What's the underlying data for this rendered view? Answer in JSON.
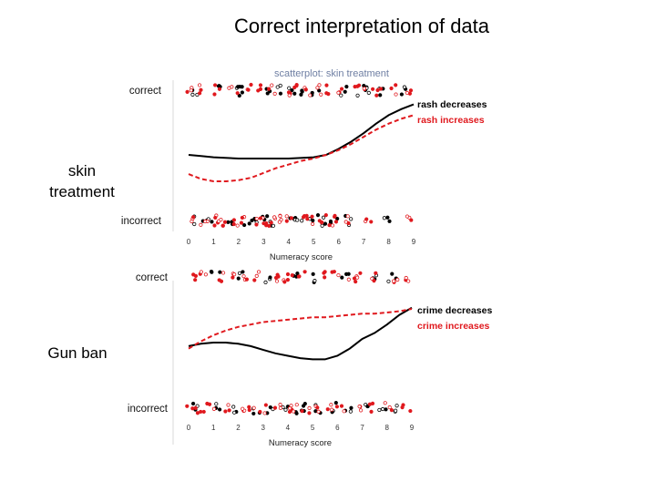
{
  "page": {
    "title": "Correct interpretation of data"
  },
  "panels": [
    {
      "row_label_lines": [
        "skin",
        "treatment"
      ]
    },
    {
      "row_label_lines": [
        "Gun ban"
      ]
    }
  ],
  "chart_data": [
    {
      "type": "scatter",
      "title": "scatterplot: skin treatment",
      "xlabel": "Numeracy score",
      "ylabel": "",
      "x_ticks": [
        0,
        1,
        2,
        3,
        4,
        5,
        6,
        7,
        8,
        9
      ],
      "xlim": [
        0,
        9
      ],
      "y_categories": [
        "correct",
        "incorrect"
      ],
      "series": [
        {
          "name": "rash decreases",
          "color": "#000000",
          "curve": {
            "x": [
              0,
              0.5,
              1,
              2,
              3,
              4,
              5,
              5.5,
              6,
              6.5,
              7,
              7.5,
              8,
              8.5,
              9
            ],
            "y": [
              0.5,
              0.49,
              0.48,
              0.47,
              0.47,
              0.47,
              0.48,
              0.5,
              0.55,
              0.61,
              0.68,
              0.76,
              0.83,
              0.88,
              0.92
            ]
          },
          "points_correct_x": [
            0.2,
            1.3,
            2.0,
            2.2,
            3.2,
            3.6,
            4.1,
            4.6,
            5.1,
            6.2,
            6.9,
            7.3,
            7.8,
            8.6
          ],
          "points_incorrect_x": [
            0.4,
            0.8,
            1.6,
            2.4,
            2.6,
            3.1,
            3.4,
            4.2,
            4.4,
            5.0,
            5.4,
            5.8,
            6.4,
            7.9
          ]
        },
        {
          "name": "rash increases",
          "color": "#e0191e",
          "curve": {
            "x": [
              0,
              0.5,
              1,
              1.5,
              2,
              2.5,
              3,
              3.5,
              4,
              4.5,
              5,
              5.5,
              6,
              6.5,
              7,
              7.5,
              8,
              8.5,
              9
            ],
            "y": [
              0.34,
              0.3,
              0.28,
              0.28,
              0.29,
              0.31,
              0.35,
              0.39,
              0.42,
              0.45,
              0.47,
              0.5,
              0.54,
              0.59,
              0.65,
              0.71,
              0.76,
              0.8,
              0.83
            ]
          },
          "points_correct_x": [
            0.1,
            0.5,
            1.1,
            1.8,
            2.5,
            2.9,
            3.3,
            3.9,
            4.3,
            4.8,
            5.3,
            5.6,
            6.1,
            6.7,
            7.2,
            7.6,
            8.2,
            8.8
          ],
          "points_incorrect_x": [
            0.2,
            0.6,
            1.0,
            1.2,
            1.4,
            1.9,
            2.1,
            2.8,
            3.0,
            3.2,
            3.5,
            3.8,
            4.1,
            4.6,
            4.9,
            5.2,
            5.6,
            6.0,
            6.3,
            7.2,
            8.9
          ]
        }
      ]
    },
    {
      "type": "scatter",
      "title": "",
      "xlabel": "Numeracy score",
      "ylabel": "",
      "x_ticks": [
        0,
        1,
        2,
        3,
        4,
        5,
        6,
        7,
        8,
        9
      ],
      "xlim": [
        0,
        9
      ],
      "y_categories": [
        "correct",
        "incorrect"
      ],
      "series": [
        {
          "name": "crime decreases",
          "color": "#000000",
          "curve": {
            "x": [
              0,
              0.5,
              1,
              1.5,
              2,
              2.5,
              3,
              3.5,
              4,
              4.5,
              5,
              5.5,
              6,
              6.5,
              7,
              7.5,
              8,
              8.5,
              9
            ],
            "y": [
              0.44,
              0.46,
              0.47,
              0.47,
              0.46,
              0.44,
              0.41,
              0.38,
              0.36,
              0.34,
              0.33,
              0.33,
              0.36,
              0.42,
              0.5,
              0.55,
              0.62,
              0.7,
              0.76
            ]
          },
          "points_correct_x": [
            1.1,
            2.1,
            3.2,
            4.3,
            5.1,
            6.3,
            7.4,
            8.2
          ],
          "points_incorrect_x": [
            0.3,
            1.2,
            1.8,
            2.7,
            3.3,
            3.9,
            4.4,
            4.8,
            5.3,
            5.8,
            6.5,
            7.1,
            7.8,
            8.5
          ]
        },
        {
          "name": "crime increases",
          "color": "#e0191e",
          "curve": {
            "x": [
              0,
              0.5,
              1,
              1.5,
              2,
              2.5,
              3,
              3.5,
              4,
              4.5,
              5,
              5.5,
              6,
              6.5,
              7,
              7.5,
              8,
              8.5,
              9
            ],
            "y": [
              0.42,
              0.48,
              0.53,
              0.57,
              0.6,
              0.62,
              0.64,
              0.65,
              0.66,
              0.67,
              0.68,
              0.68,
              0.69,
              0.7,
              0.71,
              0.71,
              0.72,
              0.73,
              0.75
            ]
          },
          "points_correct_x": [
            0.2,
            0.6,
            1.4,
            1.9,
            2.4,
            2.8,
            3.5,
            3.7,
            4.1,
            4.6,
            5.4,
            5.9,
            6.6,
            6.9,
            7.5,
            8.4,
            8.8
          ],
          "points_incorrect_x": [
            0.1,
            0.5,
            0.9,
            1.5,
            2.2,
            2.5,
            3.0,
            3.6,
            4.0,
            4.2,
            4.7,
            5.2,
            5.6,
            6.1,
            6.8,
            7.3,
            8.1,
            8.8
          ]
        }
      ]
    }
  ]
}
